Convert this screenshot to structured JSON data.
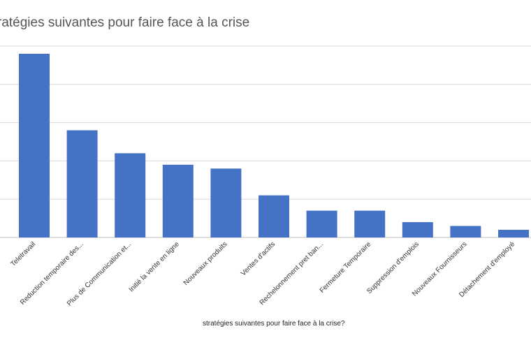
{
  "chart_data": {
    "type": "bar",
    "title": "ratégies suivantes pour faire face à la crise",
    "xlabel": "stratégies suivantes pour faire face à la crise?",
    "ylabel": "",
    "categories": [
      "Teletravail",
      "Reduction temporaire des...",
      "Plus de Communication et...",
      "Initié la vente en ligne",
      "Nouveaux produits",
      "Ventes d'actifs",
      "Rechelonnement pret ban...",
      "Fermeture Temporaire",
      "Suppression d'emplois",
      "Nouveaux Fournisseurs",
      "Détachement d'employé"
    ],
    "values": [
      4.8,
      2.8,
      2.2,
      1.9,
      1.8,
      1.1,
      0.7,
      0.7,
      0.4,
      0.3,
      0.2
    ],
    "ylim": [
      0,
      5
    ],
    "grid": true,
    "legend": "none",
    "colors": {
      "bar": "#4472c4",
      "grid": "#d9d9d9",
      "axis": "#bfbfbf"
    }
  }
}
